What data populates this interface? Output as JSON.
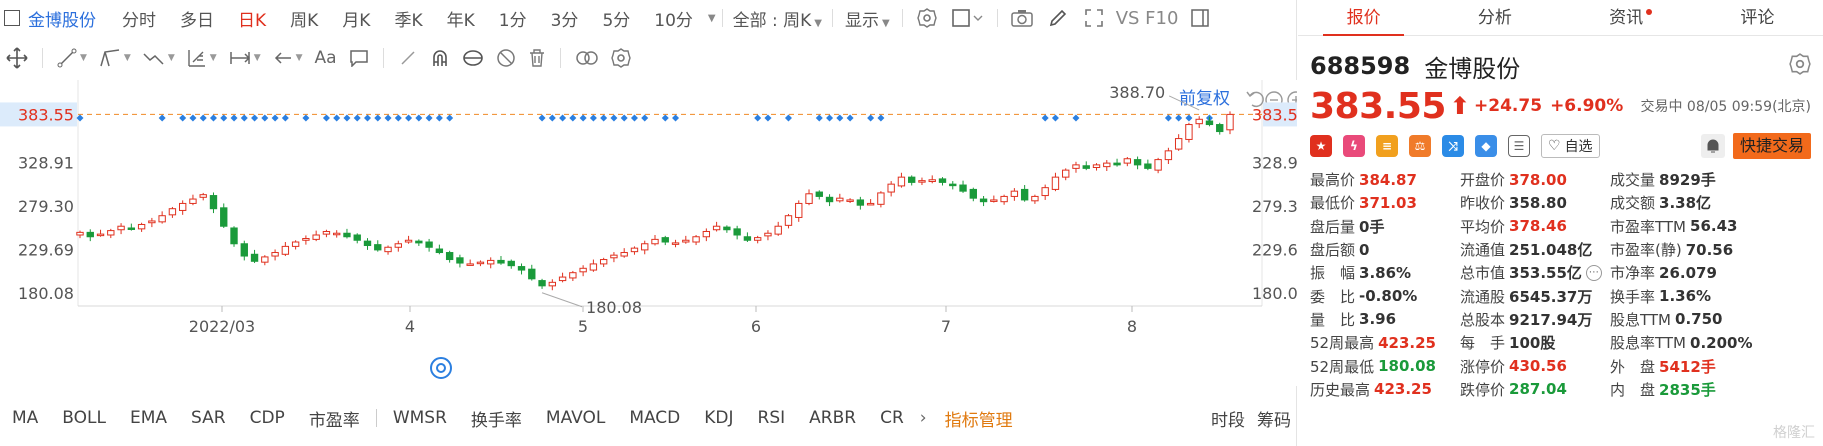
{
  "toolbar1": {
    "stock_name": "金博股份",
    "periods": [
      "分时",
      "多日",
      "日K",
      "周K",
      "月K",
      "季K",
      "年K",
      "1分",
      "3分",
      "5分",
      "10分"
    ],
    "active_period": "日K",
    "range_select": "全部 : 周K",
    "display_label": "显示",
    "vs_label": "VS F10"
  },
  "toolbar2": {
    "text_tool_label": "Aa"
  },
  "chart": {
    "adjust_label": "前复权",
    "current_price_label": "383.55",
    "high_label": "388.70",
    "low_label": "180.08",
    "y_ticks": [
      "328.91",
      "279.30",
      "229.69",
      "180.08"
    ],
    "x_ticks": [
      "2022/03",
      "4",
      "5",
      "6",
      "7",
      "8"
    ],
    "colors": {
      "up": "#e0301e",
      "down": "#1a9a3a",
      "signal": "#2b7fe0",
      "price_line": "#f08a24"
    }
  },
  "chart_data": {
    "type": "candlestick",
    "period": "日K",
    "adjust": "前复权",
    "ylim": [
      165,
      400
    ],
    "y_ticks": [
      180.08,
      229.69,
      279.3,
      328.91,
      383.55
    ],
    "x_ticks": [
      "2022/03",
      "4",
      "5",
      "6",
      "7",
      "8"
    ],
    "current_price": 383.55,
    "marked_high": 388.7,
    "marked_low": 180.08,
    "close_series": [
      249,
      244,
      247,
      251,
      256,
      253,
      258,
      262,
      268,
      276,
      282,
      287,
      292,
      276,
      256,
      236,
      222,
      216,
      221,
      226,
      233,
      238,
      242,
      246,
      250,
      248,
      244,
      240,
      234,
      229,
      232,
      236,
      240,
      237,
      232,
      226,
      218,
      214,
      213,
      215,
      217,
      214,
      211,
      206,
      196,
      188,
      192,
      198,
      203,
      208,
      213,
      218,
      223,
      226,
      231,
      236,
      241,
      238,
      237,
      240,
      244,
      250,
      256,
      252,
      246,
      240,
      243,
      248,
      256,
      268,
      282,
      293,
      290,
      284,
      288,
      286,
      280,
      282,
      294,
      304,
      312,
      306,
      308,
      309,
      306,
      303,
      296,
      288,
      284,
      286,
      290,
      296,
      286,
      290,
      300,
      312,
      320,
      326,
      322,
      326,
      328,
      326,
      333,
      326,
      322,
      332,
      342,
      356,
      372,
      378,
      372,
      364,
      383.55
    ],
    "signal_positions": [
      0,
      8,
      10,
      11,
      12,
      13,
      14,
      15,
      16,
      17,
      18,
      19,
      20,
      22,
      24,
      25,
      26,
      27,
      28,
      29,
      30,
      31,
      32,
      33,
      34,
      35,
      36,
      45,
      46,
      47,
      48,
      49,
      50,
      51,
      52,
      53,
      54,
      55,
      57,
      58,
      66,
      67,
      69,
      72,
      73,
      74,
      75,
      77,
      78,
      94,
      95,
      97,
      106,
      107,
      108,
      110
    ]
  },
  "indicators": {
    "items": [
      "MA",
      "BOLL",
      "EMA",
      "SAR",
      "CDP",
      "市盈率",
      "WMSR",
      "换手率",
      "MAVOL",
      "MACD",
      "KDJ",
      "RSI",
      "ARBR",
      "CR"
    ],
    "manage_label": "指标管理",
    "right_items": [
      "时段",
      "筹码"
    ]
  },
  "tabs": [
    "报价",
    "分析",
    "资讯",
    "评论"
  ],
  "quote_header": {
    "code": "688598",
    "name": "金博股份",
    "price": "383.55",
    "change": "+24.75",
    "change_pct": "+6.90%",
    "status": "交易中 08/05 09:59(北京)",
    "watch_label": "自选",
    "trade_label": "快捷交易"
  },
  "quote_rows": [
    [
      {
        "l": "最高价",
        "v": "384.87",
        "c": "red"
      },
      {
        "l": "开盘价",
        "v": "378.00",
        "c": "red"
      },
      {
        "l": "成交量",
        "v": "8929手",
        "c": ""
      }
    ],
    [
      {
        "l": "最低价",
        "v": "371.03",
        "c": "red"
      },
      {
        "l": "昨收价",
        "v": "358.80",
        "c": ""
      },
      {
        "l": "成交额",
        "v": "3.38亿",
        "c": ""
      }
    ],
    [
      {
        "l": "盘后量",
        "v": "0手",
        "c": ""
      },
      {
        "l": "平均价",
        "v": "378.46",
        "c": "red"
      },
      {
        "l": "市盈率TTM",
        "v": "56.43",
        "c": ""
      }
    ],
    [
      {
        "l": "盘后额",
        "v": "0",
        "c": ""
      },
      {
        "l": "流通值",
        "v": "251.048亿",
        "c": ""
      },
      {
        "l": "市盈率(静)",
        "v": "70.56",
        "c": ""
      }
    ],
    [
      {
        "l": "振　幅",
        "v": "3.86%",
        "c": ""
      },
      {
        "l": "总市值",
        "v": "353.55亿",
        "c": ""
      },
      {
        "l": "市净率",
        "v": "26.079",
        "c": ""
      }
    ],
    [
      {
        "l": "委　比",
        "v": "-0.80%",
        "c": ""
      },
      {
        "l": "流通股",
        "v": "6545.37万",
        "c": ""
      },
      {
        "l": "换手率",
        "v": "1.36%",
        "c": ""
      }
    ],
    [
      {
        "l": "量　比",
        "v": "3.96",
        "c": ""
      },
      {
        "l": "总股本",
        "v": "9217.94万",
        "c": ""
      },
      {
        "l": "股息TTM",
        "v": "0.750",
        "c": ""
      }
    ],
    [
      {
        "l": "52周最高",
        "v": "423.25",
        "c": "red"
      },
      {
        "l": "每　手",
        "v": "100股",
        "c": ""
      },
      {
        "l": "股息率TTM",
        "v": "0.200%",
        "c": ""
      }
    ],
    [
      {
        "l": "52周最低",
        "v": "180.08",
        "c": "green"
      },
      {
        "l": "涨停价",
        "v": "430.56",
        "c": "red"
      },
      {
        "l": "外　盘",
        "v": "5412手",
        "c": "red"
      }
    ],
    [
      {
        "l": "历史最高",
        "v": "423.25",
        "c": "red"
      },
      {
        "l": "跌停价",
        "v": "287.04",
        "c": "green"
      },
      {
        "l": "内　盘",
        "v": "2835手",
        "c": "green"
      }
    ]
  ],
  "watermark": "格隆汇"
}
